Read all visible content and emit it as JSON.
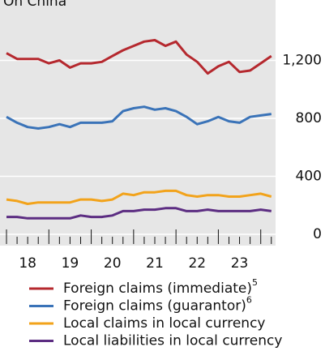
{
  "chart_data": {
    "type": "line",
    "title": "On China",
    "x": [
      2018.0,
      2018.25,
      2018.5,
      2018.75,
      2019.0,
      2019.25,
      2019.5,
      2019.75,
      2020.0,
      2020.25,
      2020.5,
      2020.75,
      2021.0,
      2021.25,
      2021.5,
      2021.75,
      2022.0,
      2022.25,
      2022.5,
      2022.75,
      2023.0,
      2023.25,
      2023.5,
      2023.75,
      2024.0,
      2024.25
    ],
    "xlim": [
      2018,
      2024.35
    ],
    "xticks": [
      {
        "value": 2018.5,
        "label": "18"
      },
      {
        "value": 2019.5,
        "label": "19"
      },
      {
        "value": 2020.5,
        "label": "20"
      },
      {
        "value": 2021.5,
        "label": "21"
      },
      {
        "value": 2022.5,
        "label": "22"
      },
      {
        "value": 2023.5,
        "label": "23"
      }
    ],
    "ylim": [
      0,
      1600
    ],
    "yticks": [
      0,
      400,
      800,
      {
        "value": 1200,
        "label": "1,200"
      }
    ],
    "grid": true,
    "series": [
      {
        "name": "Foreign claims (immediate)",
        "note": "5",
        "color": "#b5282e",
        "values": [
          1250,
          1210,
          1210,
          1210,
          1180,
          1200,
          1150,
          1180,
          1180,
          1190,
          1230,
          1270,
          1300,
          1330,
          1340,
          1300,
          1330,
          1240,
          1190,
          1110,
          1160,
          1190,
          1120,
          1130,
          1180,
          1230
        ]
      },
      {
        "name": "Foreign claims (guarantor)",
        "note": "6",
        "color": "#3a73b8",
        "values": [
          810,
          770,
          740,
          730,
          740,
          760,
          740,
          770,
          770,
          770,
          780,
          850,
          870,
          880,
          860,
          870,
          850,
          810,
          760,
          780,
          810,
          780,
          770,
          810,
          820,
          830
        ]
      },
      {
        "name": "Local claims in local currency",
        "color": "#f2a31b",
        "values": [
          240,
          230,
          210,
          220,
          220,
          220,
          220,
          240,
          240,
          230,
          240,
          280,
          270,
          290,
          290,
          300,
          300,
          270,
          260,
          270,
          270,
          260,
          260,
          270,
          280,
          260
        ]
      },
      {
        "name": "Local liabilities in local currency",
        "color": "#5c2d82",
        "values": [
          120,
          120,
          110,
          110,
          110,
          110,
          110,
          130,
          120,
          120,
          130,
          160,
          160,
          170,
          170,
          180,
          180,
          160,
          160,
          170,
          160,
          160,
          160,
          160,
          170,
          160
        ]
      }
    ]
  }
}
